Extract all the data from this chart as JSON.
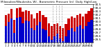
{
  "title": "Milwaukee/Waukesha, WI - Barometric Pressure (in)",
  "subtitle": "Daily High/Low",
  "days": [
    1,
    2,
    3,
    4,
    5,
    6,
    7,
    8,
    9,
    10,
    11,
    12,
    13,
    14,
    15,
    16,
    17,
    18,
    19,
    20,
    21,
    22,
    23,
    24,
    25,
    26,
    27,
    28,
    29,
    30,
    31
  ],
  "high": [
    30.18,
    30.22,
    30.35,
    30.05,
    30.38,
    30.4,
    30.28,
    30.32,
    30.3,
    30.2,
    30.08,
    30.25,
    30.3,
    30.18,
    30.12,
    29.95,
    29.88,
    29.92,
    29.95,
    29.88,
    29.82,
    29.92,
    30.08,
    30.15,
    30.1,
    30.18,
    30.22,
    30.15,
    30.22,
    30.3,
    30.38
  ],
  "low": [
    29.88,
    29.98,
    30.08,
    29.68,
    30.1,
    30.12,
    29.95,
    30.02,
    30.0,
    29.82,
    29.75,
    29.9,
    29.98,
    29.8,
    29.75,
    29.58,
    29.48,
    29.58,
    29.65,
    29.52,
    29.45,
    29.58,
    29.75,
    29.82,
    29.72,
    29.85,
    29.9,
    29.8,
    29.88,
    29.98,
    30.05
  ],
  "ymin": 29.4,
  "ymax": 30.5,
  "ytick_vals": [
    29.5,
    29.6,
    29.7,
    29.8,
    29.9,
    30.0,
    30.1,
    30.2,
    30.3,
    30.4,
    30.5
  ],
  "ytick_labels": [
    "29.5",
    "29.6",
    "29.7",
    "29.8",
    "29.9",
    "30.0",
    "30.1",
    "30.2",
    "30.3",
    "30.4",
    "30.5"
  ],
  "high_color": "#cc0000",
  "low_color": "#0000cc",
  "bg_color": "#ffffff",
  "dashed_vline_positions": [
    17.5,
    18.5,
    19.5,
    20.5
  ],
  "bar_width": 0.8
}
